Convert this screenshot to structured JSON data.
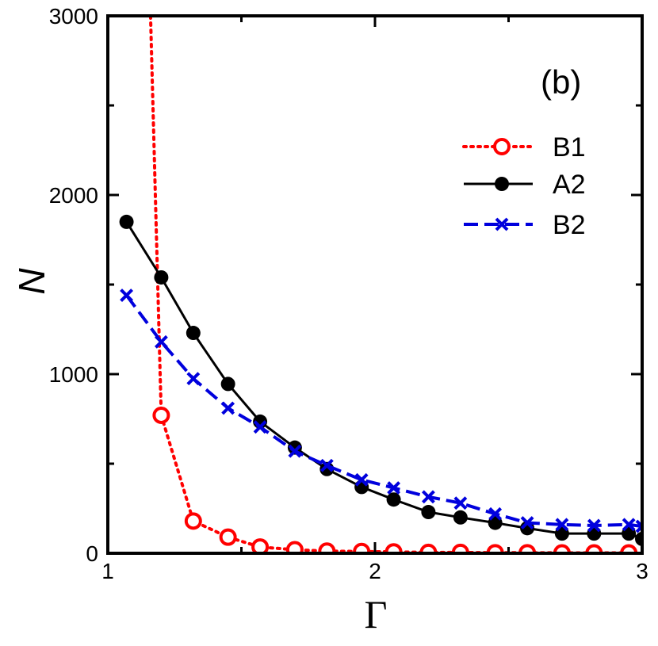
{
  "chart_data": {
    "type": "line",
    "panel_label": "(b)",
    "xlabel": "Γ",
    "ylabel": "N",
    "xlim": [
      1,
      3
    ],
    "ylim": [
      0,
      3000
    ],
    "x_ticks": [
      1,
      2,
      3
    ],
    "x_tick_labels": [
      "1",
      "2",
      "3"
    ],
    "y_ticks": [
      0,
      1000,
      2000,
      3000
    ],
    "y_tick_labels": [
      "0",
      "1000",
      "2000",
      "3000"
    ],
    "legend_position": "top-right",
    "series": [
      {
        "name": "B1",
        "color": "#ff0000",
        "line_style": "dotted",
        "marker": "open-circle",
        "x": [
          1.16,
          1.2,
          1.32,
          1.45,
          1.57,
          1.7,
          1.82,
          1.95,
          2.07,
          2.2,
          2.32,
          2.45,
          2.57,
          2.7,
          2.82,
          2.95
        ],
        "y": [
          3000,
          770,
          180,
          90,
          35,
          20,
          12,
          10,
          8,
          5,
          5,
          3,
          3,
          2,
          2,
          2
        ],
        "clip_first_point": true
      },
      {
        "name": "A2",
        "color": "#000000",
        "line_style": "solid",
        "marker": "filled-circle",
        "x": [
          1.07,
          1.2,
          1.32,
          1.45,
          1.57,
          1.7,
          1.82,
          1.95,
          2.07,
          2.2,
          2.32,
          2.45,
          2.57,
          2.7,
          2.82,
          2.95,
          3.0
        ],
        "y": [
          1850,
          1540,
          1230,
          945,
          735,
          590,
          470,
          370,
          300,
          230,
          200,
          170,
          140,
          110,
          110,
          110,
          80
        ]
      },
      {
        "name": "B2",
        "color": "#0000dd",
        "line_style": "dashed",
        "marker": "x",
        "x": [
          1.07,
          1.2,
          1.32,
          1.45,
          1.57,
          1.7,
          1.82,
          1.95,
          2.07,
          2.2,
          2.32,
          2.45,
          2.57,
          2.7,
          2.82,
          2.95,
          3.0
        ],
        "y": [
          1440,
          1180,
          975,
          810,
          705,
          570,
          490,
          410,
          365,
          315,
          280,
          220,
          170,
          160,
          155,
          160,
          150
        ]
      }
    ]
  }
}
